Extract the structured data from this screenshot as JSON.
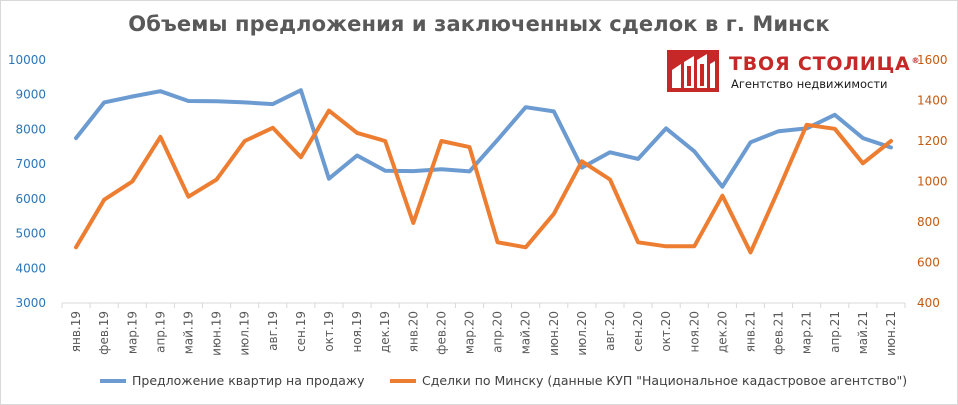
{
  "title": "Объемы предложения и заключенных сделок в г. Минск",
  "logo": {
    "brand": "ТВОЯ СТОЛИЦА",
    "registered": "®",
    "subtitle": "Агентство недвижимости"
  },
  "colors": {
    "offers": "#6b9bd1",
    "deals": "#ed7d31",
    "left_axis": "#2e75b6",
    "right_axis": "#c55a11",
    "logo_red": "#c62828",
    "grid": "#d9d9d9"
  },
  "chart_data": {
    "type": "line",
    "categories": [
      "янв.19",
      "фев.19",
      "мар.19",
      "апр.19",
      "май.19",
      "июн.19",
      "июл.19",
      "авг.19",
      "сен.19",
      "окт.19",
      "ноя.19",
      "дек.19",
      "янв.20",
      "фев.20",
      "мар.20",
      "апр.20",
      "май.20",
      "июн.20",
      "июл.20",
      "авг.20",
      "сен.20",
      "окт.20",
      "ноя.20",
      "дек.20",
      "янв.21",
      "фев.21",
      "мар.21",
      "апр.21",
      "май.21",
      "июн.21"
    ],
    "y_left": {
      "min": 3000,
      "max": 10000,
      "step": 1000,
      "ticks": [
        3000,
        4000,
        5000,
        6000,
        7000,
        8000,
        9000,
        10000
      ]
    },
    "y_right": {
      "min": 400,
      "max": 1600,
      "step": 200,
      "ticks": [
        400,
        600,
        800,
        1000,
        1200,
        1400,
        1600
      ]
    },
    "grid": false,
    "legend_position": "bottom",
    "series": [
      {
        "name": "Предложение квартир на продажу",
        "axis": "left",
        "values": [
          7750,
          8780,
          8950,
          9100,
          8820,
          8810,
          8780,
          8730,
          9130,
          6580,
          7250,
          6810,
          6800,
          6850,
          6790,
          7700,
          8640,
          8520,
          6900,
          7340,
          7150,
          8030,
          7370,
          6350,
          7630,
          7950,
          8030,
          8420,
          7750,
          7480
        ]
      },
      {
        "name": "Сделки по Минску (данные КУП \"Национальное кадастровое агентство\")",
        "axis": "right",
        "values": [
          675,
          910,
          1000,
          1220,
          925,
          1010,
          1200,
          1265,
          1120,
          1350,
          1240,
          1200,
          795,
          1200,
          1170,
          700,
          675,
          840,
          1100,
          1010,
          700,
          680,
          680,
          930,
          650,
          960,
          1280,
          1260,
          1090,
          1200
        ]
      }
    ]
  }
}
